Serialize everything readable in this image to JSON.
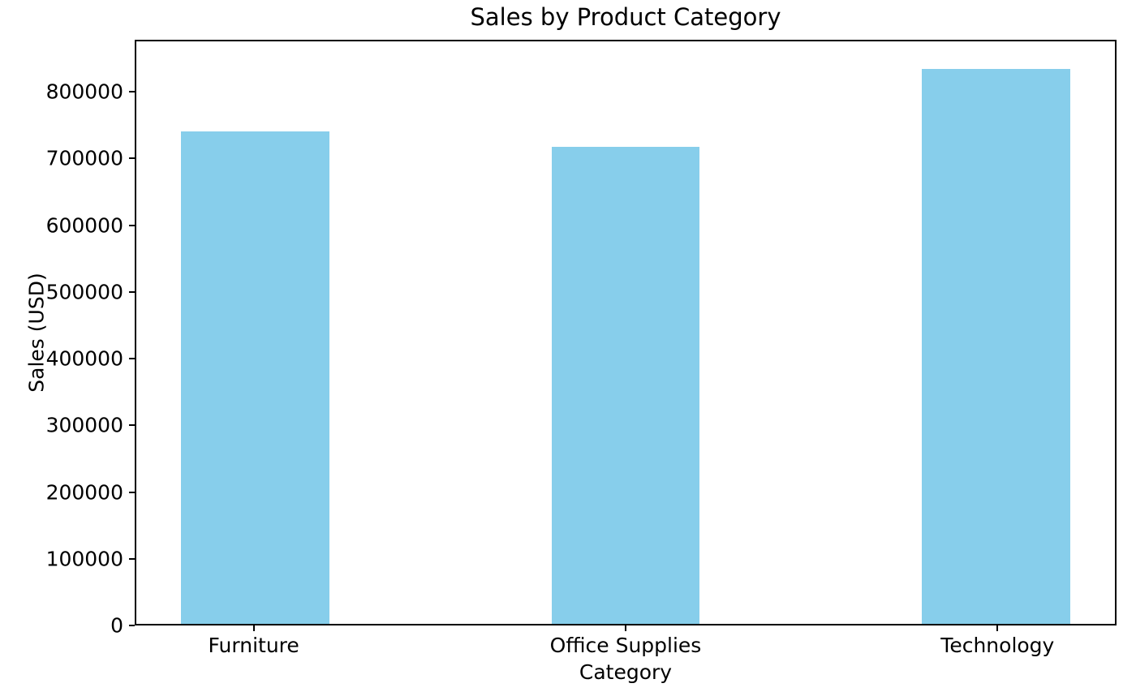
{
  "chart_data": {
    "type": "bar",
    "title": "Sales by Product Category",
    "xlabel": "Category",
    "ylabel": "Sales (USD)",
    "categories": [
      "Furniture",
      "Office Supplies",
      "Technology"
    ],
    "values": [
      742000,
      719000,
      836000
    ],
    "yticks": [
      0,
      100000,
      200000,
      300000,
      400000,
      500000,
      600000,
      700000,
      800000
    ],
    "ylim": [
      0,
      878000
    ],
    "xlim": [
      -0.32,
      2.32
    ],
    "bar_width": 0.4,
    "bar_color": "#87CEEB",
    "axis_color": "#000000",
    "background_color": "#ffffff",
    "grid": false,
    "legend": false
  }
}
